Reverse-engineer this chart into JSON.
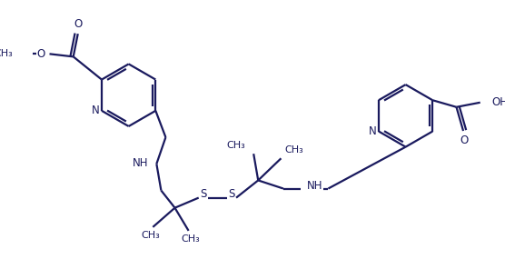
{
  "background_color": "#ffffff",
  "line_color": "#1a1a5e",
  "line_width": 1.6,
  "font_size": 8.5,
  "fig_width": 5.56,
  "fig_height": 2.85,
  "dpi": 100,
  "xlim": [
    0,
    10.0
  ],
  "ylim": [
    0,
    5.2
  ]
}
